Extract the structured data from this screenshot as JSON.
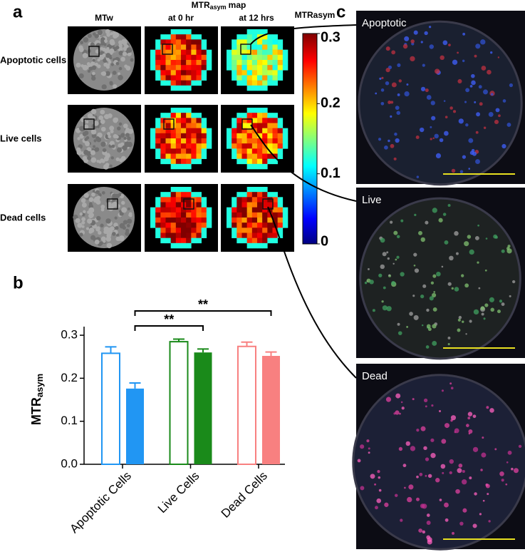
{
  "panel_labels": {
    "a": "a",
    "b": "b",
    "c": "c"
  },
  "panel_a": {
    "col_mtw": "MTw",
    "map_header": {
      "main": "MTR",
      "sub": "asym",
      "suffix": "map"
    },
    "time_0": "at 0 hr",
    "time_12": "at 12 hrs",
    "rows": [
      "Apoptotic cells",
      "Live cells",
      "Dead cells"
    ]
  },
  "colorbar": {
    "label": "MTRasym",
    "lim": [
      0,
      0.3
    ],
    "ticks": [
      0.3,
      0.2,
      0.1,
      0
    ]
  },
  "panel_c": {
    "images": [
      "Apoptotic",
      "Live",
      "Dead"
    ]
  },
  "chart_data": {
    "type": "bar",
    "ylabel": {
      "main": "MTR",
      "sub": "asym"
    },
    "categories": [
      "Apoptotic Cells",
      "Live Cells",
      "Dead Cells"
    ],
    "series": [
      {
        "colors": [
          "#2196f3",
          "#1a8a1a",
          "#f88080"
        ],
        "filled": false,
        "values": [
          0.258,
          0.285,
          0.274
        ],
        "errors": [
          0.015,
          0.006,
          0.01
        ]
      },
      {
        "colors": [
          "#2196f3",
          "#1a8a1a",
          "#f88080"
        ],
        "filled": true,
        "values": [
          0.176,
          0.26,
          0.252
        ],
        "errors": [
          0.013,
          0.008,
          0.009
        ]
      }
    ],
    "ylim": [
      0,
      0.32
    ],
    "yticks": [
      {
        "value": 0,
        "label": "0.0"
      },
      {
        "value": 0.1,
        "label": "0.1"
      },
      {
        "value": 0.2,
        "label": "0.2"
      },
      {
        "value": 0.3,
        "label": "0.3"
      }
    ],
    "annotations": [
      "**",
      "**"
    ]
  }
}
